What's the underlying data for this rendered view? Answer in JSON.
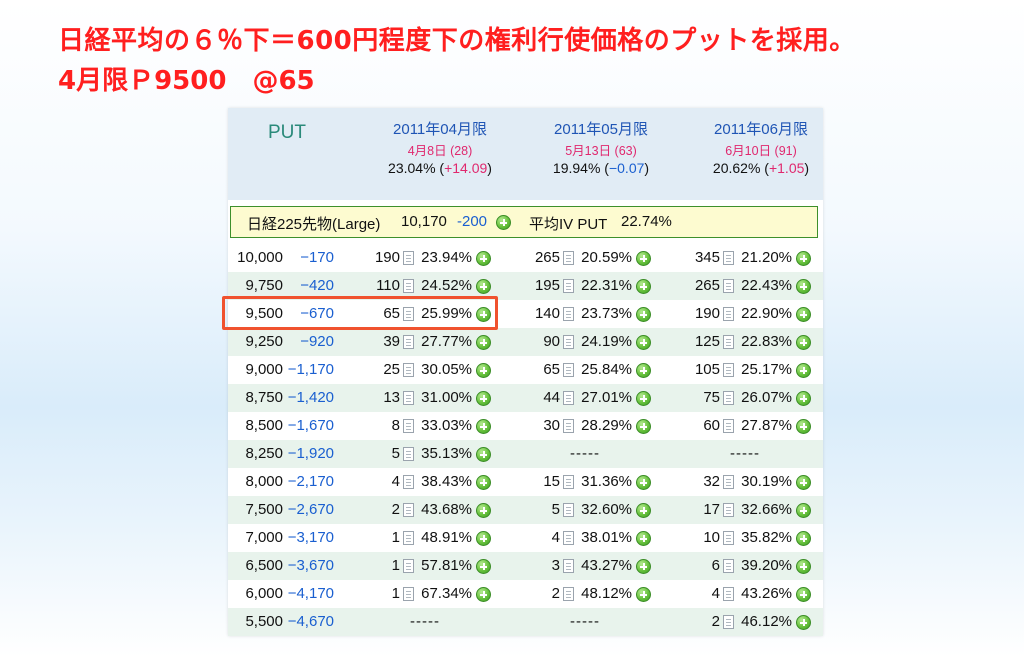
{
  "heading": {
    "line1": "日経平均の６％下＝600円程度下の権利行使価格のプットを採用。",
    "line2": "4月限Ｐ9500　@65"
  },
  "table": {
    "title": "PUT",
    "months": [
      {
        "name": "2011年04月限",
        "date": "4月8日 (28)",
        "iv": "23.04%",
        "iv_change_open": " (",
        "iv_change": "+14.09",
        "iv_change_close": ")",
        "negative": false
      },
      {
        "name": "2011年05月限",
        "date": "5月13日 (63)",
        "iv": "19.94%",
        "iv_change_open": " (",
        "iv_change": "−0.07",
        "iv_change_close": ")",
        "negative": true
      },
      {
        "name": "2011年06月限",
        "date": "6月10日 (91)",
        "iv": "20.62%",
        "iv_change_open": " (",
        "iv_change": "+1.05",
        "iv_change_close": ")",
        "negative": false
      }
    ],
    "futures": {
      "label": "日経225先物(Large)",
      "price": "10,170",
      "change": "-200",
      "avg_iv_label": "平均IV PUT",
      "avg_iv": "22.74%"
    },
    "rows": [
      {
        "strike": "10,000",
        "change": "−170",
        "cells": [
          [
            "190",
            "23.94%"
          ],
          [
            "265",
            "20.59%"
          ],
          [
            "345",
            "21.20%"
          ]
        ]
      },
      {
        "strike": "9,750",
        "change": "−420",
        "cells": [
          [
            "110",
            "24.52%"
          ],
          [
            "195",
            "22.31%"
          ],
          [
            "265",
            "22.43%"
          ]
        ]
      },
      {
        "strike": "9,500",
        "change": "−670",
        "cells": [
          [
            "65",
            "25.99%"
          ],
          [
            "140",
            "23.73%"
          ],
          [
            "190",
            "22.90%"
          ]
        ]
      },
      {
        "strike": "9,250",
        "change": "−920",
        "cells": [
          [
            "39",
            "27.77%"
          ],
          [
            "90",
            "24.19%"
          ],
          [
            "125",
            "22.83%"
          ]
        ]
      },
      {
        "strike": "9,000",
        "change": "−1,170",
        "cells": [
          [
            "25",
            "30.05%"
          ],
          [
            "65",
            "25.84%"
          ],
          [
            "105",
            "25.17%"
          ]
        ]
      },
      {
        "strike": "8,750",
        "change": "−1,420",
        "cells": [
          [
            "13",
            "31.00%"
          ],
          [
            "44",
            "27.01%"
          ],
          [
            "75",
            "26.07%"
          ]
        ]
      },
      {
        "strike": "8,500",
        "change": "−1,670",
        "cells": [
          [
            "8",
            "33.03%"
          ],
          [
            "30",
            "28.29%"
          ],
          [
            "60",
            "27.87%"
          ]
        ]
      },
      {
        "strike": "8,250",
        "change": "−1,920",
        "cells": [
          [
            "5",
            "35.13%"
          ],
          null,
          null
        ]
      },
      {
        "strike": "8,000",
        "change": "−2,170",
        "cells": [
          [
            "4",
            "38.43%"
          ],
          [
            "15",
            "31.36%"
          ],
          [
            "32",
            "30.19%"
          ]
        ]
      },
      {
        "strike": "7,500",
        "change": "−2,670",
        "cells": [
          [
            "2",
            "43.68%"
          ],
          [
            "5",
            "32.60%"
          ],
          [
            "17",
            "32.66%"
          ]
        ]
      },
      {
        "strike": "7,000",
        "change": "−3,170",
        "cells": [
          [
            "1",
            "48.91%"
          ],
          [
            "4",
            "38.01%"
          ],
          [
            "10",
            "35.82%"
          ]
        ]
      },
      {
        "strike": "6,500",
        "change": "−3,670",
        "cells": [
          [
            "1",
            "57.81%"
          ],
          [
            "3",
            "43.27%"
          ],
          [
            "6",
            "39.20%"
          ]
        ]
      },
      {
        "strike": "6,000",
        "change": "−4,170",
        "cells": [
          [
            "1",
            "67.34%"
          ],
          [
            "2",
            "48.12%"
          ],
          [
            "4",
            "43.26%"
          ]
        ]
      },
      {
        "strike": "5,500",
        "change": "−4,670",
        "cells": [
          null,
          null,
          [
            "2",
            "46.12%"
          ]
        ]
      }
    ],
    "empty_text": "-----"
  },
  "colors": {
    "heading": "#ff1f1f",
    "month_name": "#1f55b5",
    "month_date": "#e0286e",
    "change_blue": "#1a5fd0",
    "highlight": "#f0522e"
  },
  "icons": {
    "detail": "document-icon",
    "add": "plus-circle-icon"
  }
}
